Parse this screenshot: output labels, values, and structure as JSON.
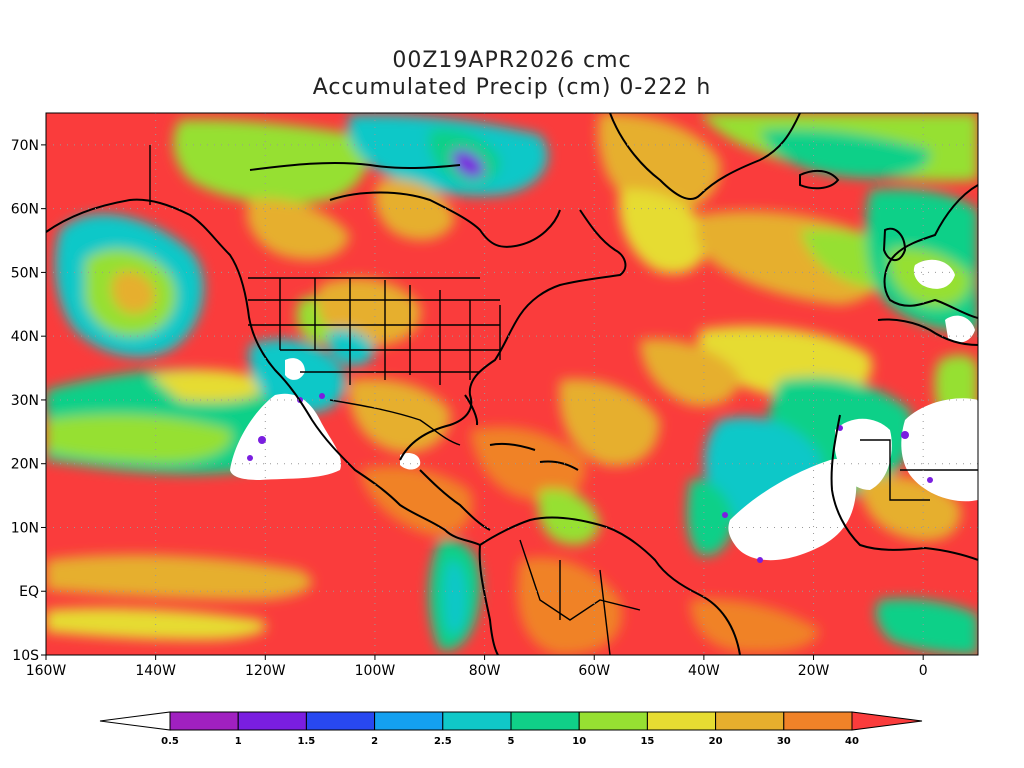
{
  "title": {
    "line1": "00Z19APR2026 cmc",
    "line2": "Accumulated Precip (cm) 0-222 h"
  },
  "map": {
    "lon_range": [
      -160,
      10
    ],
    "lat_range": [
      -10,
      75
    ],
    "lat_ticks": [
      {
        "value": 70,
        "label": "70N"
      },
      {
        "value": 60,
        "label": "60N"
      },
      {
        "value": 50,
        "label": "50N"
      },
      {
        "value": 40,
        "label": "40N"
      },
      {
        "value": 30,
        "label": "30N"
      },
      {
        "value": 20,
        "label": "20N"
      },
      {
        "value": 10,
        "label": "10N"
      },
      {
        "value": 0,
        "label": "EQ"
      },
      {
        "value": -10,
        "label": "10S"
      }
    ],
    "lon_ticks": [
      {
        "value": -160,
        "label": "160W"
      },
      {
        "value": -140,
        "label": "140W"
      },
      {
        "value": -120,
        "label": "120W"
      },
      {
        "value": -100,
        "label": "100W"
      },
      {
        "value": -80,
        "label": "80W"
      },
      {
        "value": -60,
        "label": "60W"
      },
      {
        "value": -40,
        "label": "40W"
      },
      {
        "value": -20,
        "label": "20W"
      },
      {
        "value": 0,
        "label": "0"
      }
    ],
    "grid": "dotted"
  },
  "colorbar": {
    "levels": [
      "0.5",
      "1",
      "1.5",
      "2",
      "2.5",
      "5",
      "10",
      "15",
      "20",
      "30",
      "40"
    ],
    "colors": [
      "#ffffff",
      "#a020c0",
      "#7a1ee0",
      "#2848f0",
      "#14a0f0",
      "#10c8c8",
      "#10d088",
      "#96e032",
      "#e6dc32",
      "#e6af2d",
      "#f08228",
      "#fa3c3c"
    ]
  }
}
